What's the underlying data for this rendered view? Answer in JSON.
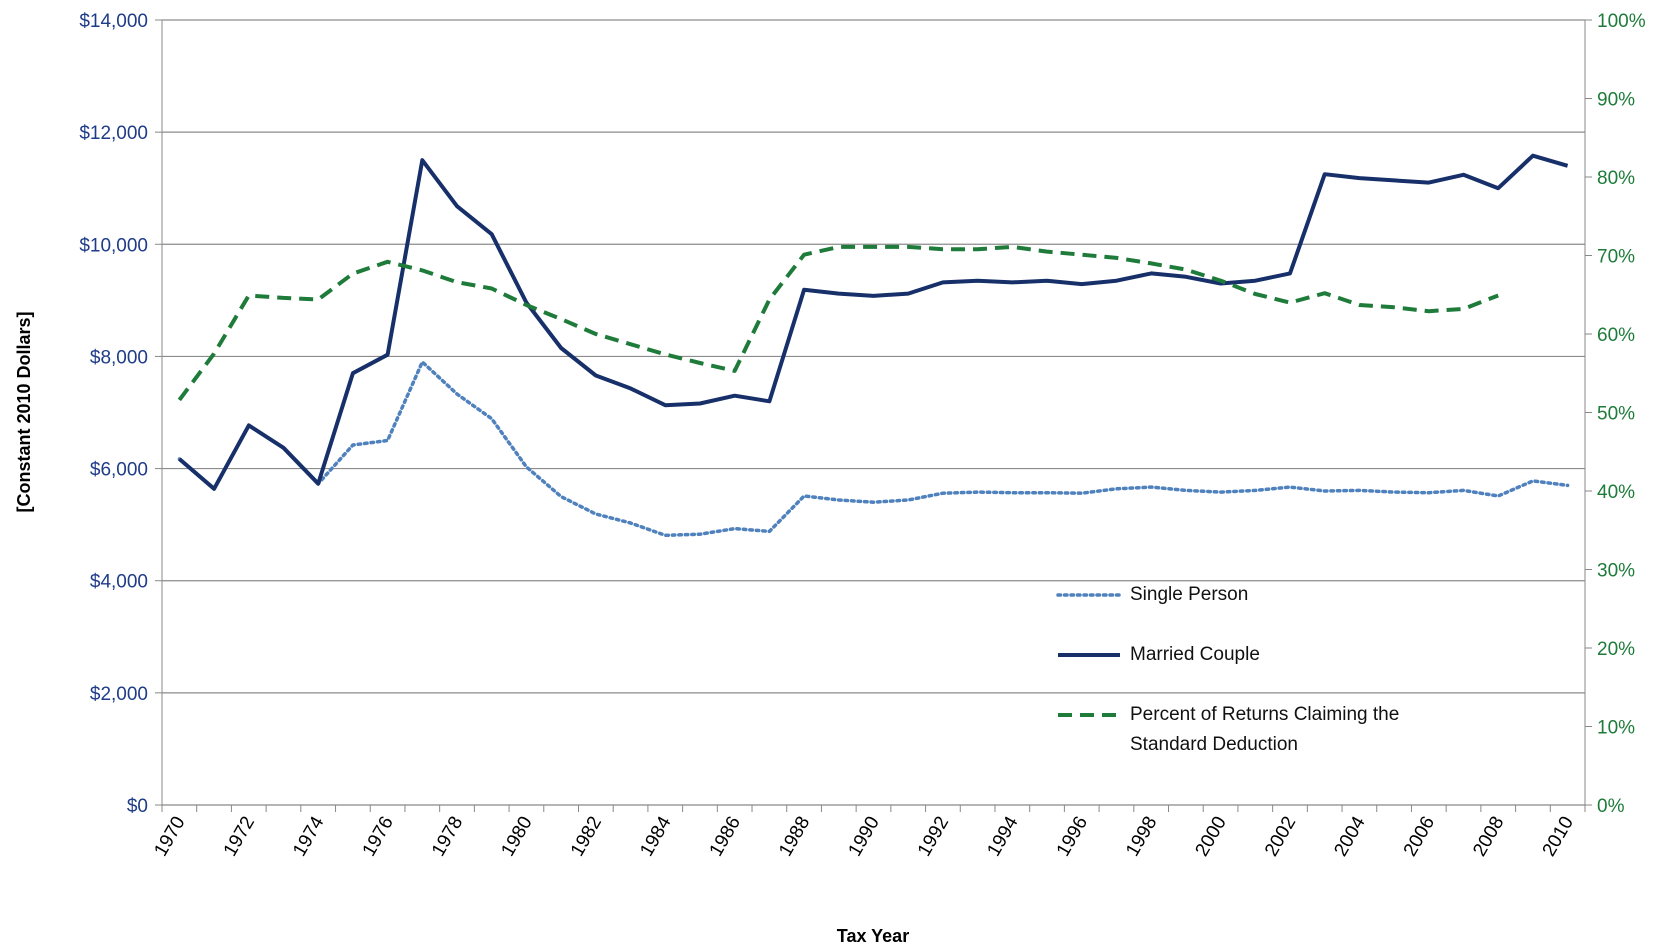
{
  "chart_data": {
    "type": "line",
    "y_label": "[Constant 2010 Dollars]",
    "x_label": "Tax Year",
    "categories": [
      "1970",
      null,
      "1972",
      null,
      "1974",
      null,
      "1976",
      null,
      "1978",
      null,
      "1980",
      null,
      "1982",
      null,
      "1984",
      null,
      "1986",
      null,
      "1988",
      null,
      "1990",
      null,
      "1992",
      null,
      "1994",
      null,
      "1996",
      null,
      "1998",
      null,
      "2000",
      null,
      "2002",
      null,
      "2004",
      null,
      "2006",
      null,
      "2008",
      null,
      "2010"
    ],
    "ylim": [
      0,
      14000
    ],
    "yticks": [
      {
        "value": 0,
        "label": "$0"
      },
      {
        "value": 2000,
        "label": "$2,000"
      },
      {
        "value": 4000,
        "label": "$4,000"
      },
      {
        "value": 6000,
        "label": "$6,000"
      },
      {
        "value": 8000,
        "label": "$8,000"
      },
      {
        "value": 10000,
        "label": "$10,000"
      },
      {
        "value": 12000,
        "label": "$12,000"
      },
      {
        "value": 14000,
        "label": "$14,000"
      }
    ],
    "y2lim": [
      0,
      100
    ],
    "y2ticks": [
      {
        "value": 0,
        "label": "0%"
      },
      {
        "value": 10,
        "label": "10%"
      },
      {
        "value": 20,
        "label": "20%"
      },
      {
        "value": 30,
        "label": "30%"
      },
      {
        "value": 40,
        "label": "40%"
      },
      {
        "value": 50,
        "label": "50%"
      },
      {
        "value": 60,
        "label": "60%"
      },
      {
        "value": 70,
        "label": "70%"
      },
      {
        "value": 80,
        "label": "80%"
      },
      {
        "value": 90,
        "label": "90%"
      },
      {
        "value": 100,
        "label": "100%"
      }
    ],
    "grid": true,
    "series": [
      {
        "name": "Single Person",
        "color": "#4f81bd",
        "dash": "dotted",
        "values": [
          6170,
          5640,
          6770,
          6370,
          5730,
          6420,
          6500,
          7900,
          7330,
          6890,
          6030,
          5500,
          5190,
          5030,
          4810,
          4830,
          4930,
          4880,
          5510,
          5440,
          5400,
          5440,
          5560,
          5580,
          5570,
          5570,
          5560,
          5640,
          5670,
          5610,
          5580,
          5610,
          5670,
          5600,
          5610,
          5580,
          5570,
          5610,
          5510,
          5780,
          5700
        ]
      },
      {
        "name": "Married Couple",
        "color": "#17306a",
        "dash": "solid",
        "values": [
          6170,
          5640,
          6770,
          6370,
          5730,
          7700,
          8030,
          11500,
          10680,
          10180,
          8960,
          8150,
          7660,
          7430,
          7130,
          7160,
          7300,
          7200,
          9190,
          9120,
          9080,
          9120,
          9320,
          9350,
          9320,
          9350,
          9290,
          9350,
          9480,
          9420,
          9300,
          9350,
          9480,
          11250,
          11180,
          11140,
          11100,
          11240,
          11000,
          11580,
          11400
        ]
      },
      {
        "name": "Percent of Returns Claiming the Standard Deduction",
        "color": "#1e7b3a",
        "dash": "dashed",
        "axis": "y2",
        "values": [
          51.6,
          57.5,
          64.9,
          64.6,
          64.4,
          67.7,
          69.2,
          68.1,
          66.6,
          65.8,
          63.7,
          61.9,
          60.0,
          58.7,
          57.4,
          56.3,
          55.3,
          64.4,
          70.1,
          71.1,
          71.1,
          71.1,
          70.8,
          70.8,
          71.1,
          70.5,
          70.1,
          69.7,
          69.0,
          68.2,
          66.8,
          65.1,
          64.0,
          65.2,
          63.7,
          63.4,
          62.9,
          63.2,
          64.9,
          null,
          null
        ]
      }
    ]
  }
}
